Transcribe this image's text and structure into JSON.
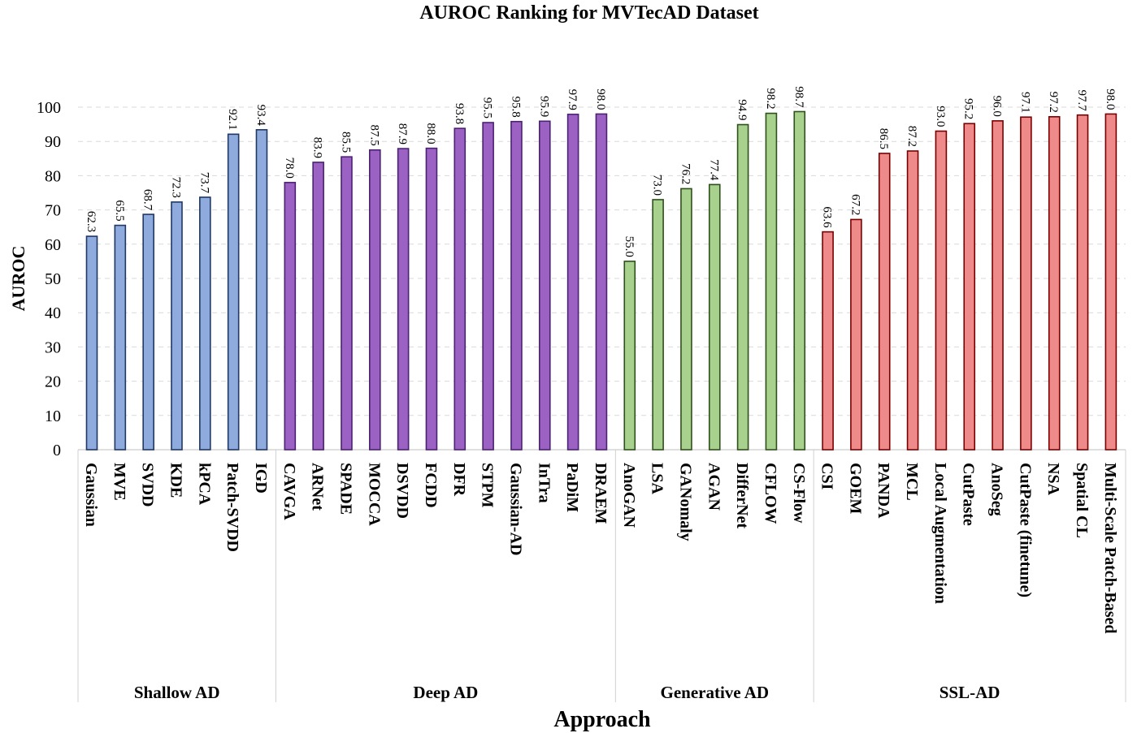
{
  "chart_data": {
    "type": "bar",
    "title": "AUROC Ranking for MVTecAD Dataset",
    "xlabel": "Approach",
    "ylabel": "AUROC",
    "ylim": [
      0,
      100
    ],
    "yticks": [
      0,
      10,
      20,
      30,
      40,
      50,
      60,
      70,
      80,
      90,
      100
    ],
    "grid": true,
    "groups": [
      {
        "name": "Shallow AD",
        "color": "#8faadc",
        "edge": "#1f3864",
        "categories": [
          "Gaussian",
          "MVE",
          "SVDD",
          "KDE",
          "kPCA",
          "Patch-SVDD",
          "IGD"
        ],
        "values": [
          62.3,
          65.5,
          68.7,
          72.3,
          73.7,
          92.1,
          93.4
        ]
      },
      {
        "name": "Deep AD",
        "color": "#9b62c4",
        "edge": "#4b2272",
        "categories": [
          "CAVGA",
          "ARNet",
          "SPADE",
          "MOCCA",
          "DSVDD",
          "FCDD",
          "DFR",
          "STPM",
          "Gaussian-AD",
          "InTra",
          "PaDiM",
          "DRAEM"
        ],
        "values": [
          78.0,
          83.9,
          85.5,
          87.5,
          87.9,
          88.0,
          93.8,
          95.5,
          95.8,
          95.9,
          97.9,
          98.0
        ]
      },
      {
        "name": "Generative AD",
        "color": "#a9d18e",
        "edge": "#2f4f1c",
        "categories": [
          "AnoGAN",
          "LSA",
          "GANomaly",
          "AGAN",
          "DifferNet",
          "CFLOW",
          "CS-Flow"
        ],
        "values": [
          55.0,
          73.0,
          76.2,
          77.4,
          94.9,
          98.2,
          98.7
        ]
      },
      {
        "name": "SSL-AD",
        "color": "#ee8a8a",
        "edge": "#7a0000",
        "categories": [
          "CSI",
          "GOEM",
          "PANDA",
          "MCL",
          "Local Augmentation",
          "CutPaste",
          "AnoSeg",
          "CutPaste (finetune)",
          "NSA",
          "Spatial CL",
          "Multi-Scale Patch-Based"
        ],
        "values": [
          63.6,
          67.2,
          86.5,
          87.2,
          93.0,
          95.2,
          96.0,
          97.1,
          97.2,
          97.7,
          98.0
        ]
      }
    ]
  }
}
